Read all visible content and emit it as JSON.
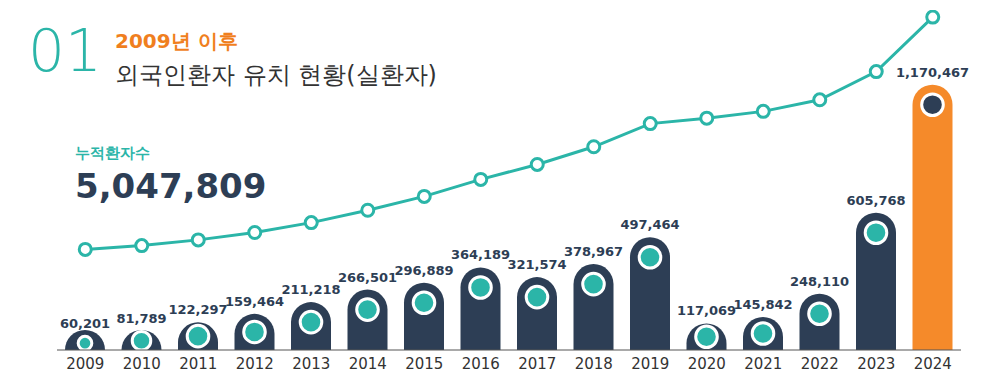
{
  "chart_data": {
    "type": "bar",
    "title": "외국인환자 유치 현황(실환자)",
    "subtitle": "2009년 이후",
    "annotations": [
      "01",
      "5,047,809"
    ],
    "categories": [
      "2009",
      "2010",
      "2011",
      "2012",
      "2013",
      "2014",
      "2015",
      "2016",
      "2017",
      "2018",
      "2019",
      "2020",
      "2021",
      "2022",
      "2023",
      "2024"
    ],
    "series": [
      {
        "type": "bar",
        "values": [
          60201,
          81789,
          122297,
          159464,
          211218,
          266501,
          296889,
          364189,
          321574,
          378967,
          497464,
          117069,
          145842,
          248110,
          605768,
          1170467
        ],
        "value_labels": [
          "60,201",
          "81,789",
          "122,297",
          "159,464",
          "211,218",
          "266,501",
          "296,889",
          "364,189",
          "321,574",
          "378,967",
          "497,464",
          "117,069",
          "145,842",
          "248,110",
          "605,768",
          "1,170,467"
        ],
        "colors": [
          "#2d3e55",
          "#2d3e55",
          "#2d3e55",
          "#2d3e55",
          "#2d3e55",
          "#2d3e55",
          "#2d3e55",
          "#2d3e55",
          "#2d3e55",
          "#2d3e55",
          "#2d3e55",
          "#2d3e55",
          "#2d3e55",
          "#2d3e55",
          "#2d3e55",
          "#f58a2a"
        ]
      },
      {
        "name": "누적환자수",
        "type": "line",
        "axis": "y2",
        "color": "#2bb5a8",
        "marker": "circle",
        "values": [
          60201,
          141990,
          264287,
          423751,
          634969,
          901470,
          1198359,
          1562548,
          1884122,
          2263089,
          2760553,
          2877622,
          3023464,
          3271574,
          3877342,
          5047809
        ]
      }
    ],
    "ylim": [
      0,
      1500000
    ],
    "y2lim": [
      -2100000,
      5200000
    ],
    "data_labels": true,
    "grid": false,
    "tick_labels": "x"
  }
}
